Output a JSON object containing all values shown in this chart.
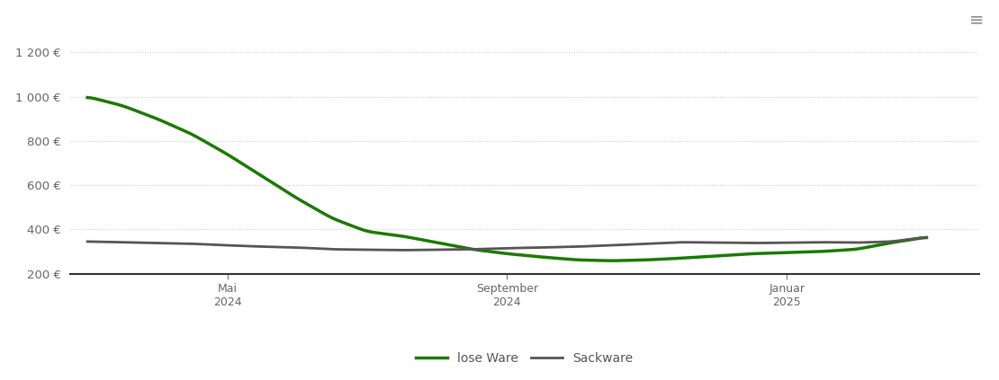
{
  "background_color": "#ffffff",
  "grid_color": "#cccccc",
  "ylim": [
    200,
    1300
  ],
  "yticks": [
    200,
    400,
    600,
    800,
    1000,
    1200
  ],
  "ytick_labels": [
    "200 €",
    "400 €",
    "600 €",
    "800 €",
    "1 000 €",
    "1 200 €"
  ],
  "lose_ware_color": "#1a7a00",
  "sackware_color": "#555555",
  "legend_labels": [
    "lose Ware",
    "Sackware"
  ],
  "lose_ware_x": [
    0,
    1,
    2,
    3,
    4,
    5,
    6,
    7,
    8,
    9,
    10,
    11,
    12,
    13,
    14,
    15,
    16,
    17,
    18,
    19,
    20,
    21,
    22,
    23,
    24
  ],
  "lose_ware_y": [
    1000,
    960,
    900,
    830,
    740,
    640,
    540,
    450,
    390,
    370,
    340,
    310,
    290,
    275,
    262,
    258,
    262,
    270,
    280,
    290,
    295,
    300,
    310,
    340,
    365
  ],
  "sackware_x": [
    0,
    1,
    2,
    3,
    4,
    5,
    6,
    7,
    8,
    9,
    10,
    11,
    12,
    13,
    14,
    15,
    16,
    17,
    18,
    19,
    20,
    21,
    22,
    23,
    24
  ],
  "sackware_y": [
    345,
    342,
    338,
    335,
    328,
    322,
    318,
    310,
    308,
    306,
    308,
    310,
    315,
    318,
    322,
    328,
    335,
    342,
    340,
    338,
    340,
    342,
    340,
    345,
    365
  ],
  "xtick_positions": [
    4,
    12,
    20
  ],
  "xtick_labels": [
    "Mai\n2024",
    "September\n2024",
    "Januar\n2025"
  ]
}
